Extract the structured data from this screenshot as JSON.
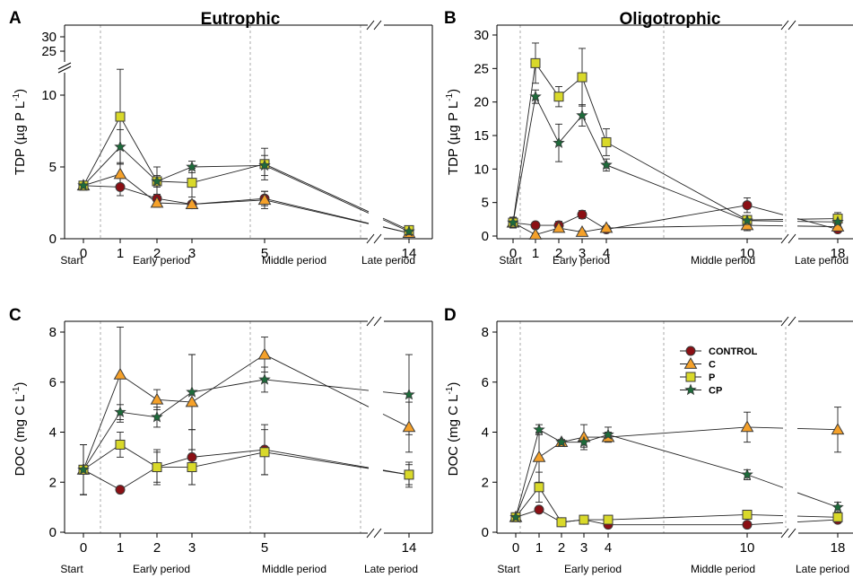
{
  "colors": {
    "CONTROL": "#8b0f14",
    "C": "#f5a12a",
    "P": "#d9d92a",
    "CP": "#1d6b3a",
    "axis": "#000000",
    "period_line": "#aaaaaa"
  },
  "legend": {
    "items": [
      {
        "key": "CONTROL",
        "label": "CONTROL",
        "marker": "circle"
      },
      {
        "key": "C",
        "label": "C",
        "marker": "triangle"
      },
      {
        "key": "P",
        "label": "P",
        "marker": "square"
      },
      {
        "key": "CP",
        "label": "CP",
        "marker": "star"
      }
    ],
    "placement": "upper-middle of panel D"
  },
  "chart_data": [
    {
      "panel": "A",
      "title": "Eutrophic",
      "type": "line",
      "ylabel": "TDP (µg P L",
      "ylabel_sup": "-1",
      "ylabel_close": ")",
      "ylim": [
        0,
        12
      ],
      "ytick_values": [
        0,
        5,
        10
      ],
      "ytick_labels": [
        "0",
        "5",
        "10"
      ],
      "ybreak_labels": [
        "25",
        "30"
      ],
      "x_ticks": [
        0,
        1,
        2,
        3,
        5,
        14
      ],
      "x_tick_labels": [
        "0",
        "1",
        "2",
        "3",
        "5",
        "14"
      ],
      "periods": [
        "Start",
        "Early period",
        "Middle period",
        "Late period"
      ],
      "series": [
        {
          "name": "CONTROL",
          "x": [
            0,
            1,
            2,
            3,
            5,
            14
          ],
          "y": [
            3.7,
            3.6,
            2.8,
            2.4,
            2.8,
            0.4
          ],
          "err": [
            0.3,
            0.6,
            0.3,
            0.2,
            0.5,
            0.2
          ]
        },
        {
          "name": "C",
          "x": [
            0,
            1,
            2,
            3,
            5,
            14
          ],
          "y": [
            3.7,
            4.5,
            2.5,
            2.4,
            2.7,
            0.4
          ],
          "err": [
            0.3,
            0.8,
            0.3,
            0.2,
            0.6,
            0.2
          ]
        },
        {
          "name": "P",
          "x": [
            0,
            1,
            2,
            3,
            5,
            14
          ],
          "y": [
            3.7,
            8.5,
            4.0,
            3.9,
            5.2,
            0.6
          ],
          "err": [
            0.3,
            3.3,
            1.0,
            1.0,
            1.1,
            0.2
          ]
        },
        {
          "name": "CP",
          "x": [
            0,
            1,
            2,
            3,
            5,
            14
          ],
          "y": [
            3.7,
            6.4,
            4.0,
            5.0,
            5.1,
            0.5
          ],
          "err": [
            0.3,
            1.2,
            0.4,
            0.4,
            0.7,
            0.2
          ]
        }
      ]
    },
    {
      "panel": "B",
      "title": "Oligotrophic",
      "type": "line",
      "ylabel": "TDP (µg P L",
      "ylabel_sup": "-1",
      "ylabel_close": ")",
      "ylim": [
        0,
        30
      ],
      "ytick_values": [
        0,
        5,
        10,
        15,
        20,
        25,
        30
      ],
      "ytick_labels": [
        "0",
        "5",
        "10",
        "15",
        "20",
        "25",
        "30"
      ],
      "x_ticks": [
        0,
        1,
        2,
        3,
        4,
        10,
        18
      ],
      "x_tick_labels": [
        "0",
        "1",
        "2",
        "3",
        "4",
        "10",
        "18"
      ],
      "periods": [
        "Start",
        "Early period",
        "Middle period",
        "Late period"
      ],
      "series": [
        {
          "name": "CONTROL",
          "x": [
            0,
            1,
            2,
            3,
            4,
            10,
            18
          ],
          "y": [
            2.0,
            1.6,
            1.6,
            3.2,
            1.0,
            4.6,
            1.0
          ],
          "err": [
            0.8,
            0.3,
            0.6,
            0.6,
            0.3,
            1.1,
            0.4
          ]
        },
        {
          "name": "C",
          "x": [
            0,
            1,
            2,
            3,
            4,
            10,
            18
          ],
          "y": [
            2.0,
            0.2,
            1.2,
            0.6,
            1.2,
            1.6,
            1.4
          ],
          "err": [
            0.8,
            0.2,
            0.3,
            0.2,
            0.3,
            0.8,
            0.4
          ]
        },
        {
          "name": "P",
          "x": [
            0,
            1,
            2,
            3,
            4,
            10,
            18
          ],
          "y": [
            2.0,
            25.8,
            20.8,
            23.7,
            14.0,
            2.4,
            2.6
          ],
          "err": [
            0.8,
            3.0,
            1.5,
            4.3,
            2.0,
            0.6,
            0.9
          ]
        },
        {
          "name": "CP",
          "x": [
            0,
            1,
            2,
            3,
            4,
            10,
            18
          ],
          "y": [
            2.0,
            20.8,
            13.9,
            18.0,
            10.6,
            2.3,
            2.1
          ],
          "err": [
            0.8,
            1.0,
            2.8,
            1.6,
            0.9,
            0.5,
            0.6
          ]
        }
      ]
    },
    {
      "panel": "C",
      "title": "",
      "type": "line",
      "ylabel": "DOC (mg C L",
      "ylabel_sup": "-1",
      "ylabel_close": ")",
      "ylim": [
        0,
        8.6
      ],
      "ytick_values": [
        0,
        2,
        4,
        6,
        8
      ],
      "ytick_labels": [
        "0",
        "2",
        "4",
        "6",
        "8"
      ],
      "x_ticks": [
        0,
        1,
        2,
        3,
        5,
        14
      ],
      "x_tick_labels": [
        "0",
        "1",
        "2",
        "3",
        "5",
        "14"
      ],
      "periods": [
        "Start",
        "Early period",
        "Middle period",
        "Late period"
      ],
      "series": [
        {
          "name": "CONTROL",
          "x": [
            0,
            1,
            2,
            3,
            5,
            14
          ],
          "y": [
            2.5,
            1.7,
            2.6,
            3.0,
            3.3,
            2.3
          ],
          "err": [
            1.0,
            0.1,
            0.6,
            1.1,
            1.0,
            0.5
          ]
        },
        {
          "name": "C",
          "x": [
            0,
            1,
            2,
            3,
            5,
            14
          ],
          "y": [
            2.5,
            6.3,
            5.3,
            5.2,
            7.1,
            4.2
          ],
          "err": [
            1.0,
            1.9,
            0.4,
            1.9,
            0.7,
            1.0
          ]
        },
        {
          "name": "P",
          "x": [
            0,
            1,
            2,
            3,
            5,
            14
          ],
          "y": [
            2.5,
            3.5,
            2.6,
            2.6,
            3.2,
            2.3
          ],
          "err": [
            1.0,
            0.5,
            0.7,
            0.7,
            0.9,
            0.4
          ]
        },
        {
          "name": "CP",
          "x": [
            0,
            1,
            2,
            3,
            5,
            14
          ],
          "y": [
            2.5,
            4.8,
            4.6,
            5.6,
            6.1,
            5.5
          ],
          "err": [
            1.0,
            0.3,
            0.4,
            1.5,
            0.5,
            1.6
          ]
        }
      ]
    },
    {
      "panel": "D",
      "title": "",
      "type": "line",
      "ylabel": "DOC (mg C L",
      "ylabel_sup": "-1",
      "ylabel_close": ")",
      "ylim": [
        0,
        8.6
      ],
      "ytick_values": [
        0,
        2,
        4,
        6,
        8
      ],
      "ytick_labels": [
        "0",
        "2",
        "4",
        "6",
        "8"
      ],
      "x_ticks": [
        0,
        1,
        2,
        3,
        4,
        10,
        18
      ],
      "x_tick_labels": [
        "0",
        "1",
        "2",
        "3",
        "4",
        "10",
        "18"
      ],
      "periods": [
        "Start",
        "Early period",
        "Middle period",
        "Late period"
      ],
      "series": [
        {
          "name": "CONTROL",
          "x": [
            0,
            1,
            2,
            3,
            4,
            10,
            18
          ],
          "y": [
            0.6,
            0.9,
            0.4,
            0.5,
            0.3,
            0.3,
            0.5
          ],
          "err": [
            0.1,
            0.1,
            0.1,
            0.1,
            0.1,
            0.1,
            0.1
          ]
        },
        {
          "name": "C",
          "x": [
            0,
            1,
            2,
            3,
            4,
            10,
            18
          ],
          "y": [
            0.6,
            3.0,
            3.6,
            3.8,
            3.8,
            4.2,
            4.1
          ],
          "err": [
            0.1,
            1.0,
            0.1,
            0.5,
            0.2,
            0.6,
            0.9
          ]
        },
        {
          "name": "P",
          "x": [
            0,
            1,
            2,
            3,
            4,
            10,
            18
          ],
          "y": [
            0.6,
            1.8,
            0.4,
            0.5,
            0.5,
            0.7,
            0.6
          ],
          "err": [
            0.1,
            0.6,
            0.1,
            0.1,
            0.1,
            0.1,
            0.2
          ]
        },
        {
          "name": "CP",
          "x": [
            0,
            1,
            2,
            3,
            4,
            10,
            18
          ],
          "y": [
            0.6,
            4.1,
            3.6,
            3.6,
            3.9,
            2.3,
            1.0
          ],
          "err": [
            0.1,
            0.2,
            0.1,
            0.2,
            0.3,
            0.2,
            0.2
          ]
        }
      ]
    }
  ]
}
